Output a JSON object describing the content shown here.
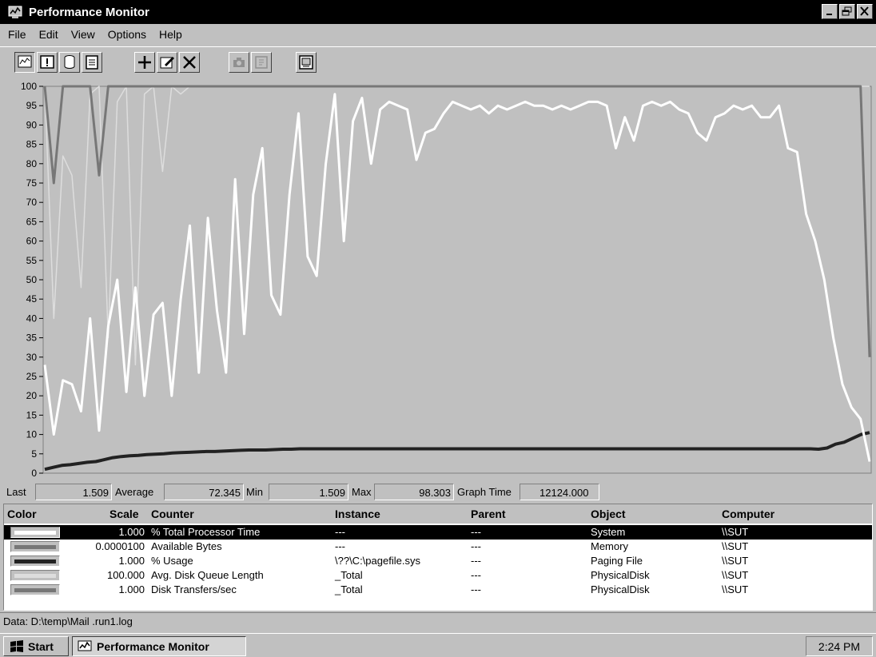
{
  "window": {
    "title": "Performance Monitor"
  },
  "menu": [
    "File",
    "Edit",
    "View",
    "Options",
    "Help"
  ],
  "toolbar": {
    "icons": [
      "chart-view-icon",
      "alert-view-icon",
      "log-view-icon",
      "report-view-icon",
      "add-counter-icon",
      "edit-counter-icon",
      "delete-counter-icon",
      "bookmark-icon",
      "snapshot-icon",
      "options-icon"
    ]
  },
  "stats": {
    "last_label": "Last",
    "last": "1.509",
    "avg_label": "Average",
    "avg": "72.345",
    "min_label": "Min",
    "min": "1.509",
    "max_label": "Max",
    "max": "98.303",
    "graphtime_label": "Graph Time",
    "graphtime": "12124.000"
  },
  "legend": {
    "headers": [
      "Color",
      "Scale",
      "Counter",
      "Instance",
      "Parent",
      "Object",
      "Computer"
    ],
    "rows": [
      {
        "scale": "1.000",
        "counter": "% Total Processor Time",
        "instance": "---",
        "parent": "---",
        "object": "System",
        "computer": "\\\\SUT"
      },
      {
        "scale": "0.0000100",
        "counter": "Available Bytes",
        "instance": "---",
        "parent": "---",
        "object": "Memory",
        "computer": "\\\\SUT"
      },
      {
        "scale": "1.000",
        "counter": "% Usage",
        "instance": "\\??\\C:\\pagefile.sys",
        "parent": "---",
        "object": "Paging File",
        "computer": "\\\\SUT"
      },
      {
        "scale": "100.000",
        "counter": "Avg. Disk Queue Length",
        "instance": "_Total",
        "parent": "---",
        "object": "PhysicalDisk",
        "computer": "\\\\SUT"
      },
      {
        "scale": "1.000",
        "counter": "Disk Transfers/sec",
        "instance": "_Total",
        "parent": "---",
        "object": "PhysicalDisk",
        "computer": "\\\\SUT"
      }
    ]
  },
  "status": {
    "data_file": "Data: D:\\temp\\Mail      .run1.log"
  },
  "taskbar": {
    "start": "Start",
    "task": "Performance Monitor",
    "clock": "2:24 PM"
  },
  "colors": {
    "processor": "#ffffff",
    "available_bytes": "#777777",
    "usage": "#222222",
    "disk_queue": "#dddddd",
    "disk_transfers": "#777777"
  },
  "chart_data": {
    "type": "line",
    "ylim": [
      0,
      100
    ],
    "yticks": [
      0,
      5,
      10,
      15,
      20,
      25,
      30,
      35,
      40,
      45,
      50,
      55,
      60,
      65,
      70,
      75,
      80,
      85,
      90,
      95,
      100
    ],
    "series": [
      {
        "name": "% Total Processor Time",
        "values": [
          28,
          10,
          24,
          23,
          16,
          40,
          11,
          38,
          50,
          21,
          48,
          20,
          41,
          44,
          20,
          45,
          64,
          26,
          66,
          42,
          26,
          76,
          36,
          72,
          84,
          46,
          41,
          72,
          93,
          56,
          51,
          80,
          98,
          60,
          91,
          97,
          80,
          94,
          96,
          95,
          94,
          81,
          88,
          89,
          93,
          96,
          95,
          94,
          95,
          93,
          95,
          94,
          95,
          96,
          95,
          95,
          94,
          95,
          94,
          95,
          96,
          96,
          95,
          84,
          92,
          86,
          95,
          96,
          95,
          96,
          94,
          93,
          88,
          86,
          92,
          93,
          95,
          94,
          95,
          92,
          92,
          95,
          84,
          83,
          67,
          60,
          50,
          35,
          23,
          17,
          14,
          3
        ]
      },
      {
        "name": "% Usage",
        "values": [
          1,
          1.5,
          2,
          2.2,
          2.5,
          2.8,
          3,
          3.5,
          4,
          4.3,
          4.5,
          4.6,
          4.8,
          4.9,
          5,
          5.2,
          5.3,
          5.4,
          5.5,
          5.6,
          5.6,
          5.7,
          5.8,
          5.9,
          6,
          6,
          6,
          6.1,
          6.2,
          6.2,
          6.3,
          6.3,
          6.3,
          6.3,
          6.3,
          6.3,
          6.3,
          6.3,
          6.3,
          6.3,
          6.3,
          6.3,
          6.3,
          6.3,
          6.3,
          6.3,
          6.3,
          6.3,
          6.3,
          6.3,
          6.3,
          6.3,
          6.3,
          6.3,
          6.3,
          6.3,
          6.3,
          6.3,
          6.3,
          6.3,
          6.3,
          6.3,
          6.3,
          6.3,
          6.3,
          6.3,
          6.3,
          6.3,
          6.3,
          6.3,
          6.3,
          6.3,
          6.3,
          6.3,
          6.3,
          6.3,
          6.3,
          6.3,
          6.3,
          6.3,
          6.3,
          6.3,
          6.3,
          6.3,
          6.3,
          6.3,
          6.3,
          6.3,
          6.3,
          6.3,
          6.3,
          6.2,
          6.5,
          7.5,
          8,
          9,
          10,
          10.5
        ]
      },
      {
        "name": "Avg. Disk Queue Length",
        "values": [
          100,
          40,
          82,
          77,
          48,
          98,
          100,
          35,
          96,
          100,
          28,
          98,
          100,
          78,
          100,
          98,
          100,
          100,
          100,
          100,
          100,
          100,
          100,
          100,
          100,
          100,
          100,
          100,
          100,
          100,
          100,
          100,
          100,
          100,
          100,
          100,
          100,
          100,
          100,
          100,
          100,
          100,
          100,
          100,
          100,
          100,
          100,
          100,
          100,
          100,
          100,
          100,
          100,
          100,
          100,
          100,
          100,
          100,
          100,
          100,
          100,
          100,
          100,
          100,
          100,
          100,
          100,
          100,
          100,
          100,
          100,
          100,
          100,
          100,
          100,
          100,
          100,
          100,
          100,
          100,
          100,
          100,
          100,
          100,
          100,
          100,
          100,
          100,
          100,
          100,
          100,
          100
        ]
      },
      {
        "name": "Disk Transfers/sec",
        "values": [
          100,
          75,
          100,
          100,
          100,
          100,
          77,
          100,
          100,
          100,
          100,
          100,
          100,
          100,
          100,
          100,
          100,
          100,
          100,
          100,
          100,
          100,
          100,
          100,
          100,
          100,
          100,
          100,
          100,
          100,
          100,
          100,
          100,
          100,
          100,
          100,
          100,
          100,
          100,
          100,
          100,
          100,
          100,
          100,
          100,
          100,
          100,
          100,
          100,
          100,
          100,
          100,
          100,
          100,
          100,
          100,
          100,
          100,
          100,
          100,
          100,
          100,
          100,
          100,
          100,
          100,
          100,
          100,
          100,
          100,
          100,
          100,
          100,
          100,
          100,
          100,
          100,
          100,
          100,
          100,
          100,
          100,
          100,
          100,
          100,
          100,
          100,
          100,
          100,
          100,
          100,
          30
        ]
      }
    ]
  }
}
